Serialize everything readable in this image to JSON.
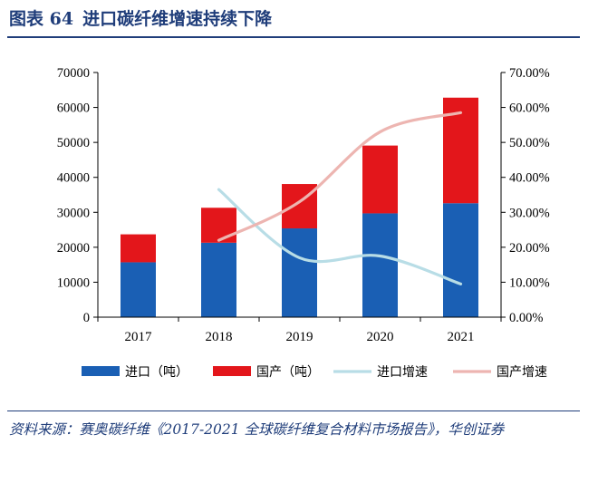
{
  "figure": {
    "number": "图表 64",
    "title": "进口碳纤维增速持续下降"
  },
  "source": "资料来源：赛奥碳纤维《2017-2021 全球碳纤维复合材料市场报告》，华创证券",
  "colors": {
    "import_bar": "#1a5fb4",
    "domestic_bar": "#e3161b",
    "import_growth": "#b8dde6",
    "domestic_growth": "#edb5b1",
    "axis": "#000000",
    "title": "#1f3d7a"
  },
  "chart_data": {
    "type": "bar",
    "stacked": true,
    "categories": [
      "2017",
      "2018",
      "2019",
      "2020",
      "2021"
    ],
    "series": [
      {
        "name": "进口（吨）",
        "type": "bar",
        "axis": "left",
        "values": [
          15700,
          21300,
          25400,
          29700,
          32600
        ]
      },
      {
        "name": "国产（吨）",
        "type": "bar",
        "axis": "left",
        "values": [
          8000,
          10000,
          12700,
          19400,
          30200
        ]
      },
      {
        "name": "进口增速",
        "type": "line",
        "axis": "right",
        "smooth": true,
        "values": [
          null,
          0.365,
          0.17,
          0.175,
          0.095
        ]
      },
      {
        "name": "国产增速",
        "type": "line",
        "axis": "right",
        "smooth": true,
        "values": [
          null,
          0.22,
          0.33,
          0.53,
          0.585
        ]
      }
    ],
    "y_left": {
      "range": [
        0,
        70000
      ],
      "ticks": [
        "0",
        "10000",
        "20000",
        "30000",
        "40000",
        "50000",
        "60000",
        "70000"
      ]
    },
    "y_right": {
      "range": [
        0,
        0.7
      ],
      "ticks": [
        "0.00%",
        "10.00%",
        "20.00%",
        "30.00%",
        "40.00%",
        "50.00%",
        "60.00%",
        "70.00%"
      ]
    },
    "legend": {
      "position": "bottom",
      "items": [
        "进口（吨）",
        "国产（吨）",
        "进口增速",
        "国产增速"
      ]
    },
    "grid": false
  }
}
